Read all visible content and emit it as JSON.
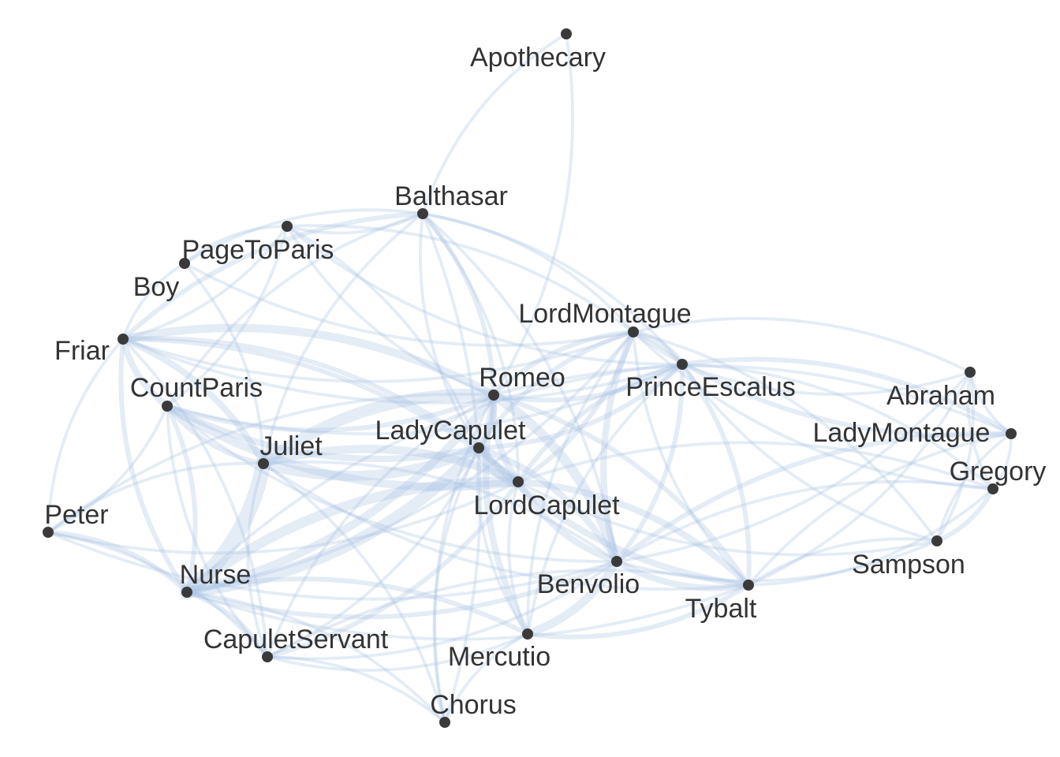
{
  "colors": {
    "edge": "#aac4e4",
    "node": "#3a3a3a",
    "label": "#333333",
    "background": "#ffffff"
  },
  "graph": {
    "nodes": [
      {
        "id": "Apothecary",
        "label": "Apothecary"
      },
      {
        "id": "Balthasar",
        "label": "Balthasar"
      },
      {
        "id": "PageToParis",
        "label": "PageToParis"
      },
      {
        "id": "Boy",
        "label": "Boy"
      },
      {
        "id": "Friar",
        "label": "Friar"
      },
      {
        "id": "CountParis",
        "label": "CountParis"
      },
      {
        "id": "LordMontague",
        "label": "LordMontague"
      },
      {
        "id": "Romeo",
        "label": "Romeo"
      },
      {
        "id": "PrinceEscalus",
        "label": "PrinceEscalus"
      },
      {
        "id": "Abraham",
        "label": "Abraham"
      },
      {
        "id": "LadyCapulet",
        "label": "LadyCapulet"
      },
      {
        "id": "Juliet",
        "label": "Juliet"
      },
      {
        "id": "LadyMontague",
        "label": "LadyMontague"
      },
      {
        "id": "LordCapulet",
        "label": "LordCapulet"
      },
      {
        "id": "Gregory",
        "label": "Gregory"
      },
      {
        "id": "Peter",
        "label": "Peter"
      },
      {
        "id": "Sampson",
        "label": "Sampson"
      },
      {
        "id": "Benvolio",
        "label": "Benvolio"
      },
      {
        "id": "Nurse",
        "label": "Nurse"
      },
      {
        "id": "Tybalt",
        "label": "Tybalt"
      },
      {
        "id": "CapuletServant",
        "label": "CapuletServant"
      },
      {
        "id": "Mercutio",
        "label": "Mercutio"
      },
      {
        "id": "Chorus",
        "label": "Chorus"
      }
    ],
    "edges": [
      [
        "Apothecary",
        "Balthasar",
        1
      ],
      [
        "Apothecary",
        "Romeo",
        1
      ],
      [
        "Romeo",
        "Juliet",
        6
      ],
      [
        "Romeo",
        "Nurse",
        4
      ],
      [
        "Romeo",
        "Friar",
        4
      ],
      [
        "Romeo",
        "Benvolio",
        5
      ],
      [
        "Romeo",
        "Mercutio",
        3
      ],
      [
        "Romeo",
        "LadyCapulet",
        3
      ],
      [
        "Romeo",
        "LordCapulet",
        3
      ],
      [
        "Romeo",
        "Tybalt",
        2
      ],
      [
        "Romeo",
        "Balthasar",
        2
      ],
      [
        "Romeo",
        "LordMontague",
        2
      ],
      [
        "Romeo",
        "PrinceEscalus",
        2
      ],
      [
        "Romeo",
        "CountParis",
        2
      ],
      [
        "Romeo",
        "CapuletServant",
        1
      ],
      [
        "Romeo",
        "PageToParis",
        1
      ],
      [
        "Romeo",
        "Chorus",
        1
      ],
      [
        "Romeo",
        "LadyMontague",
        1
      ],
      [
        "Romeo",
        "Peter",
        1
      ],
      [
        "Juliet",
        "Nurse",
        8
      ],
      [
        "Juliet",
        "LadyCapulet",
        5
      ],
      [
        "Juliet",
        "LordCapulet",
        4
      ],
      [
        "Juliet",
        "Friar",
        3
      ],
      [
        "Juliet",
        "CountParis",
        2
      ],
      [
        "Juliet",
        "Tybalt",
        1
      ],
      [
        "Juliet",
        "Benvolio",
        1
      ],
      [
        "Juliet",
        "CapuletServant",
        1
      ],
      [
        "Juliet",
        "Balthasar",
        1
      ],
      [
        "Nurse",
        "LadyCapulet",
        6
      ],
      [
        "Nurse",
        "LordCapulet",
        5
      ],
      [
        "Nurse",
        "Peter",
        2
      ],
      [
        "Nurse",
        "Friar",
        2
      ],
      [
        "Nurse",
        "Benvolio",
        2
      ],
      [
        "Nurse",
        "Mercutio",
        2
      ],
      [
        "Nurse",
        "CountParis",
        2
      ],
      [
        "Nurse",
        "CapuletServant",
        2
      ],
      [
        "Nurse",
        "Tybalt",
        1
      ],
      [
        "Nurse",
        "Chorus",
        1
      ],
      [
        "Nurse",
        "LordMontague",
        1
      ],
      [
        "Nurse",
        "PrinceEscalus",
        1
      ],
      [
        "LadyCapulet",
        "LordCapulet",
        7
      ],
      [
        "LadyCapulet",
        "Benvolio",
        3
      ],
      [
        "LadyCapulet",
        "Tybalt",
        3
      ],
      [
        "LadyCapulet",
        "CountParis",
        3
      ],
      [
        "LadyCapulet",
        "PrinceEscalus",
        2
      ],
      [
        "LadyCapulet",
        "LordMontague",
        2
      ],
      [
        "LadyCapulet",
        "Friar",
        2
      ],
      [
        "LadyCapulet",
        "CapuletServant",
        1
      ],
      [
        "LadyCapulet",
        "Mercutio",
        1
      ],
      [
        "LadyCapulet",
        "Balthasar",
        1
      ],
      [
        "LadyCapulet",
        "PageToParis",
        1
      ],
      [
        "LordCapulet",
        "Tybalt",
        3
      ],
      [
        "LordCapulet",
        "Benvolio",
        3
      ],
      [
        "LordCapulet",
        "CountParis",
        4
      ],
      [
        "LordCapulet",
        "Friar",
        2
      ],
      [
        "LordCapulet",
        "PrinceEscalus",
        2
      ],
      [
        "LordCapulet",
        "LordMontague",
        2
      ],
      [
        "LordCapulet",
        "CapuletServant",
        2
      ],
      [
        "LordCapulet",
        "Mercutio",
        1
      ],
      [
        "LordCapulet",
        "Gregory",
        1
      ],
      [
        "LordCapulet",
        "Sampson",
        1
      ],
      [
        "LordCapulet",
        "Peter",
        1
      ],
      [
        "LordCapulet",
        "Balthasar",
        1
      ],
      [
        "Benvolio",
        "Mercutio",
        4
      ],
      [
        "Benvolio",
        "Tybalt",
        3
      ],
      [
        "Benvolio",
        "LordMontague",
        3
      ],
      [
        "Benvolio",
        "PrinceEscalus",
        2
      ],
      [
        "Benvolio",
        "LadyMontague",
        2
      ],
      [
        "Benvolio",
        "Abraham",
        1
      ],
      [
        "Benvolio",
        "Gregory",
        1
      ],
      [
        "Benvolio",
        "Sampson",
        1
      ],
      [
        "Benvolio",
        "CapuletServant",
        1
      ],
      [
        "Benvolio",
        "Balthasar",
        1
      ],
      [
        "Tybalt",
        "Mercutio",
        2
      ],
      [
        "Tybalt",
        "PrinceEscalus",
        2
      ],
      [
        "Tybalt",
        "LordMontague",
        1
      ],
      [
        "Tybalt",
        "Gregory",
        1
      ],
      [
        "Tybalt",
        "Sampson",
        1
      ],
      [
        "Tybalt",
        "Abraham",
        1
      ],
      [
        "Tybalt",
        "LadyMontague",
        1
      ],
      [
        "PrinceEscalus",
        "LordMontague",
        3
      ],
      [
        "PrinceEscalus",
        "LadyMontague",
        2
      ],
      [
        "PrinceEscalus",
        "Abraham",
        1
      ],
      [
        "PrinceEscalus",
        "Gregory",
        1
      ],
      [
        "PrinceEscalus",
        "Sampson",
        1
      ],
      [
        "PrinceEscalus",
        "Friar",
        1
      ],
      [
        "PrinceEscalus",
        "Balthasar",
        1
      ],
      [
        "PrinceEscalus",
        "CountParis",
        1
      ],
      [
        "PrinceEscalus",
        "Mercutio",
        1
      ],
      [
        "PrinceEscalus",
        "PageToParis",
        1
      ],
      [
        "LordMontague",
        "LadyMontague",
        2
      ],
      [
        "LordMontague",
        "Abraham",
        1
      ],
      [
        "LordMontague",
        "Gregory",
        1
      ],
      [
        "LordMontague",
        "Sampson",
        1
      ],
      [
        "LordMontague",
        "Balthasar",
        1
      ],
      [
        "LordMontague",
        "Friar",
        1
      ],
      [
        "LordMontague",
        "PageToParis",
        1
      ],
      [
        "LordMontague",
        "Boy",
        1
      ],
      [
        "Abraham",
        "Gregory",
        1
      ],
      [
        "Abraham",
        "Sampson",
        1
      ],
      [
        "Abraham",
        "LadyMontague",
        1
      ],
      [
        "Gregory",
        "Sampson",
        2
      ],
      [
        "Gregory",
        "LadyMontague",
        1
      ],
      [
        "Sampson",
        "LadyMontague",
        1
      ],
      [
        "Friar",
        "CountParis",
        3
      ],
      [
        "Friar",
        "Balthasar",
        2
      ],
      [
        "Friar",
        "PageToParis",
        1
      ],
      [
        "Friar",
        "Boy",
        1
      ],
      [
        "Friar",
        "Peter",
        1
      ],
      [
        "Friar",
        "CapuletServant",
        1
      ],
      [
        "CountParis",
        "PageToParis",
        1
      ],
      [
        "CountParis",
        "Balthasar",
        1
      ],
      [
        "CountParis",
        "CapuletServant",
        1
      ],
      [
        "CountParis",
        "Peter",
        1
      ],
      [
        "CountParis",
        "Benvolio",
        1
      ],
      [
        "Balthasar",
        "PageToParis",
        1
      ],
      [
        "Balthasar",
        "Boy",
        1
      ],
      [
        "Balthasar",
        "Chorus",
        1
      ],
      [
        "PageToParis",
        "Boy",
        1
      ],
      [
        "Boy",
        "Juliet",
        1
      ],
      [
        "CapuletServant",
        "Peter",
        1
      ],
      [
        "CapuletServant",
        "Chorus",
        1
      ],
      [
        "CapuletServant",
        "Mercutio",
        1
      ],
      [
        "CapuletServant",
        "Tybalt",
        1
      ],
      [
        "Mercutio",
        "Chorus",
        1
      ],
      [
        "Mercutio",
        "LordMontague",
        1
      ],
      [
        "Chorus",
        "Juliet",
        1
      ],
      [
        "Chorus",
        "LadyCapulet",
        1
      ],
      [
        "Peter",
        "Benvolio",
        1
      ],
      [
        "Peter",
        "Juliet",
        1
      ]
    ]
  }
}
